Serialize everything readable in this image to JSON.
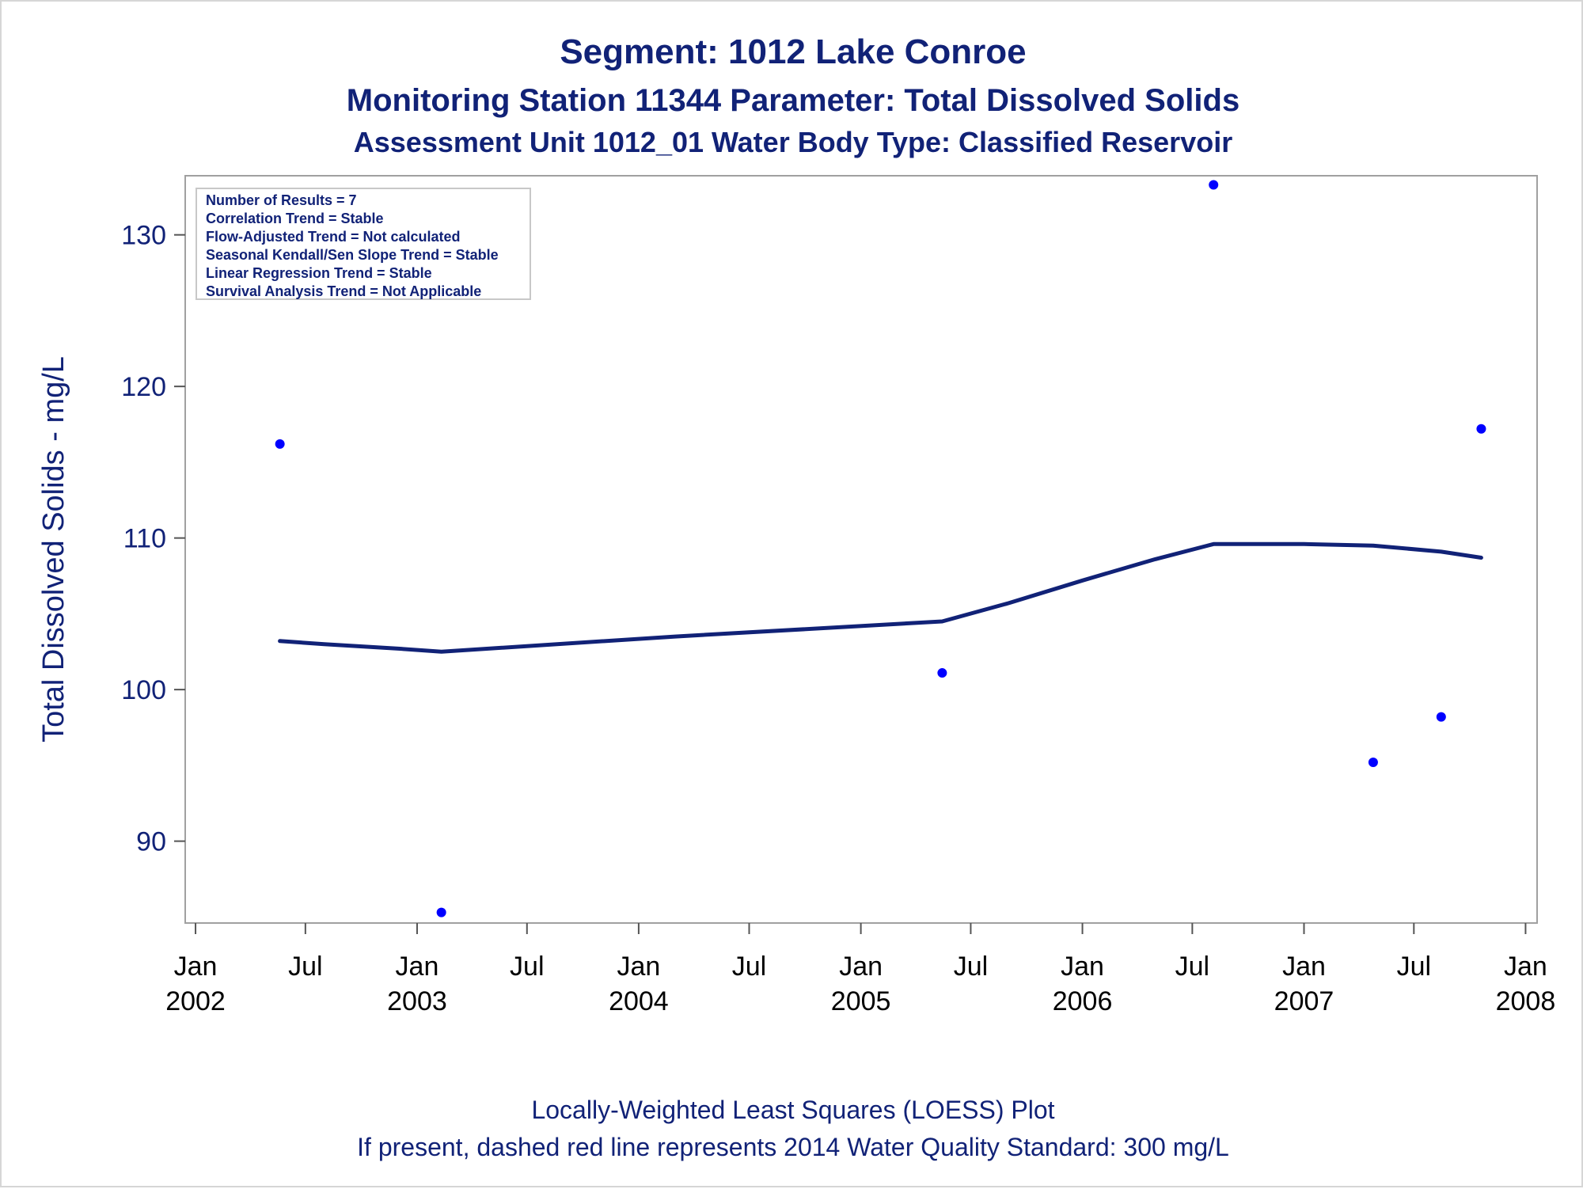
{
  "chart_data": {
    "type": "scatter",
    "title": "Segment: 1012  Lake Conroe",
    "subtitle_1": "Monitoring Station 11344 Parameter: Total Dissolved Solids",
    "subtitle_2": "Assessment Unit 1012_01   Water Body Type: Classified Reservoir",
    "ylabel": "Total Dissolved Solids - mg/L",
    "ylim": [
      84.6,
      133.9
    ],
    "yticks": [
      90,
      100,
      110,
      120,
      130
    ],
    "xlim": [
      "2001-12-15",
      "2008-01-20"
    ],
    "xticks": [
      {
        "date": "2002-01-01",
        "month": "Jan",
        "year": "2002"
      },
      {
        "date": "2002-07-01",
        "month": "Jul",
        "year": ""
      },
      {
        "date": "2003-01-01",
        "month": "Jan",
        "year": "2003"
      },
      {
        "date": "2003-07-01",
        "month": "Jul",
        "year": ""
      },
      {
        "date": "2004-01-01",
        "month": "Jan",
        "year": "2004"
      },
      {
        "date": "2004-07-01",
        "month": "Jul",
        "year": ""
      },
      {
        "date": "2005-01-01",
        "month": "Jan",
        "year": "2005"
      },
      {
        "date": "2005-07-01",
        "month": "Jul",
        "year": ""
      },
      {
        "date": "2006-01-01",
        "month": "Jan",
        "year": "2006"
      },
      {
        "date": "2006-07-01",
        "month": "Jul",
        "year": ""
      },
      {
        "date": "2007-01-01",
        "month": "Jan",
        "year": "2007"
      },
      {
        "date": "2007-07-01",
        "month": "Jul",
        "year": ""
      },
      {
        "date": "2008-01-01",
        "month": "Jan",
        "year": "2008"
      }
    ],
    "series": [
      {
        "kind": "points",
        "color": "#0000ff",
        "x": [
          "2002-05-20",
          "2003-02-10",
          "2005-05-15",
          "2006-08-05",
          "2007-04-25",
          "2007-08-15",
          "2007-10-20"
        ],
        "y": [
          116.2,
          85.3,
          101.1,
          133.3,
          95.2,
          98.2,
          117.2
        ]
      },
      {
        "kind": "line",
        "color": "#112277",
        "x": [
          "2002-05-20",
          "2002-08-01",
          "2002-12-01",
          "2003-02-10",
          "2004-03-01",
          "2005-05-15",
          "2005-09-01",
          "2006-01-01",
          "2006-05-01",
          "2006-08-05",
          "2006-09-01",
          "2007-01-01",
          "2007-04-25",
          "2007-08-15",
          "2007-10-20"
        ],
        "y": [
          103.2,
          103.0,
          102.7,
          102.5,
          103.5,
          104.5,
          105.7,
          107.2,
          108.6,
          109.6,
          109.6,
          109.6,
          109.5,
          109.1,
          108.7
        ]
      }
    ],
    "inset_box": {
      "lines": [
        "Number of Results = 7",
        "Correlation Trend = Stable",
        "Flow-Adjusted Trend = Not calculated",
        "Seasonal Kendall/Sen Slope Trend = Stable",
        "Linear Regression Trend = Stable",
        "Survival Analysis Trend = Not Applicable"
      ],
      "placement": "top-left"
    },
    "footnote_1": "Locally-Weighted Least Squares (LOESS) Plot",
    "footnote_2": "If present, dashed red line represents 2014 Water Quality Standard: 300   mg/L",
    "grid": false,
    "legend": "none"
  }
}
